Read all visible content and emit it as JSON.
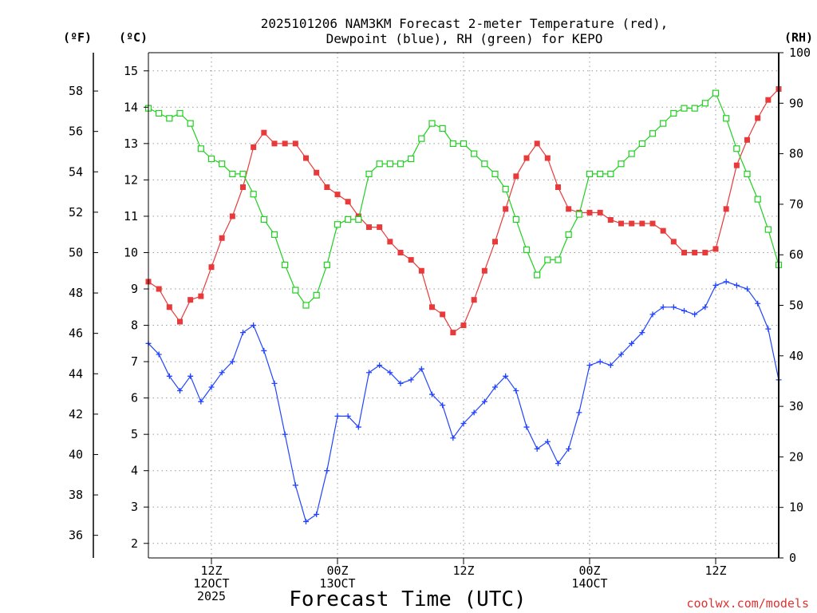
{
  "chart_data": {
    "type": "line",
    "title_lines": [
      "2025101206 NAM3KM Forecast 2-meter Temperature (red),",
      "Dewpoint (blue), RH (green) for KEPO"
    ],
    "xlabel": "Forecast Time (UTC)",
    "credit": "coolwx.com/models",
    "unit_labels": {
      "fahrenheit": "(ºF)",
      "celsius": "(ºC)",
      "rh": "(RH)"
    },
    "x_hours": [
      0,
      1,
      2,
      3,
      4,
      5,
      6,
      7,
      8,
      9,
      10,
      11,
      12,
      13,
      14,
      15,
      16,
      17,
      18,
      19,
      20,
      21,
      22,
      23,
      24,
      25,
      26,
      27,
      28,
      29,
      30,
      31,
      32,
      33,
      34,
      35,
      36,
      37,
      38,
      39,
      40,
      41,
      42,
      43,
      44,
      45,
      46,
      47,
      48,
      49,
      50,
      51,
      52,
      53,
      54,
      55,
      56,
      57,
      58,
      59,
      60
    ],
    "xlim": [
      0,
      60
    ],
    "x_ticks": [
      {
        "hour": 6,
        "lines": [
          "12Z",
          "12OCT",
          "2025"
        ]
      },
      {
        "hour": 18,
        "lines": [
          "00Z",
          "13OCT"
        ]
      },
      {
        "hour": 30,
        "lines": [
          "12Z"
        ]
      },
      {
        "hour": 42,
        "lines": [
          "00Z",
          "14OCT"
        ]
      },
      {
        "hour": 54,
        "lines": [
          "12Z"
        ]
      }
    ],
    "y_celsius": {
      "lim": [
        1.6,
        15.5
      ],
      "ticks": [
        2,
        3,
        4,
        5,
        6,
        7,
        8,
        9,
        10,
        11,
        12,
        13,
        14,
        15
      ]
    },
    "y_fahrenheit": {
      "ticks": [
        36,
        38,
        40,
        42,
        44,
        46,
        48,
        50,
        52,
        54,
        56,
        58
      ]
    },
    "y_rh": {
      "lim": [
        0,
        100
      ],
      "ticks": [
        0,
        10,
        20,
        30,
        40,
        50,
        60,
        70,
        80,
        90,
        100
      ]
    },
    "series": [
      {
        "name": "Temperature",
        "unit": "C",
        "color": "#e83a3a",
        "marker": "filled-square",
        "values": [
          9.2,
          9.0,
          8.5,
          8.1,
          8.7,
          8.8,
          9.6,
          10.4,
          11.0,
          11.8,
          12.9,
          13.3,
          13.0,
          13.0,
          13.0,
          12.6,
          12.2,
          11.8,
          11.6,
          11.4,
          11.0,
          10.7,
          10.7,
          10.3,
          10.0,
          9.8,
          9.5,
          8.5,
          8.3,
          7.8,
          8.0,
          8.7,
          9.5,
          10.3,
          11.2,
          12.1,
          12.6,
          13.0,
          12.6,
          11.8,
          11.2,
          11.1,
          11.1,
          11.1,
          10.9,
          10.8,
          10.8,
          10.8,
          10.8,
          10.6,
          10.3,
          10.0,
          10.0,
          10.0,
          10.1,
          11.2,
          12.4,
          13.1,
          13.7,
          14.2,
          14.5
        ]
      },
      {
        "name": "Dewpoint",
        "unit": "C",
        "color": "#2244ff",
        "marker": "plus",
        "values": [
          7.5,
          7.2,
          6.6,
          6.2,
          6.6,
          5.9,
          6.3,
          6.7,
          7.0,
          7.8,
          8.0,
          7.3,
          6.4,
          5.0,
          3.6,
          2.6,
          2.8,
          4.0,
          5.5,
          5.5,
          5.2,
          6.7,
          6.9,
          6.7,
          6.4,
          6.5,
          6.8,
          6.1,
          5.8,
          4.9,
          5.3,
          5.6,
          5.9,
          6.3,
          6.6,
          6.2,
          5.2,
          4.6,
          4.8,
          4.2,
          4.6,
          5.6,
          6.9,
          7.0,
          6.9,
          7.2,
          7.5,
          7.8,
          8.3,
          8.5,
          8.5,
          8.4,
          8.3,
          8.5,
          9.1,
          9.2,
          9.1,
          9.0,
          8.6,
          7.9,
          6.5
        ]
      },
      {
        "name": "RH",
        "unit": "%",
        "color": "#20d020",
        "marker": "hollow-square",
        "values": [
          89,
          88,
          87,
          88,
          86,
          81,
          79,
          78,
          76,
          76,
          72,
          67,
          64,
          58,
          53,
          50,
          52,
          58,
          66,
          67,
          67,
          76,
          78,
          78,
          78,
          79,
          83,
          86,
          85,
          82,
          82,
          80,
          78,
          76,
          73,
          67,
          61,
          56,
          59,
          59,
          64,
          68,
          76,
          76,
          76,
          78,
          80,
          82,
          84,
          86,
          88,
          89,
          89,
          90,
          92,
          87,
          81,
          76,
          71,
          65,
          58
        ]
      }
    ]
  }
}
